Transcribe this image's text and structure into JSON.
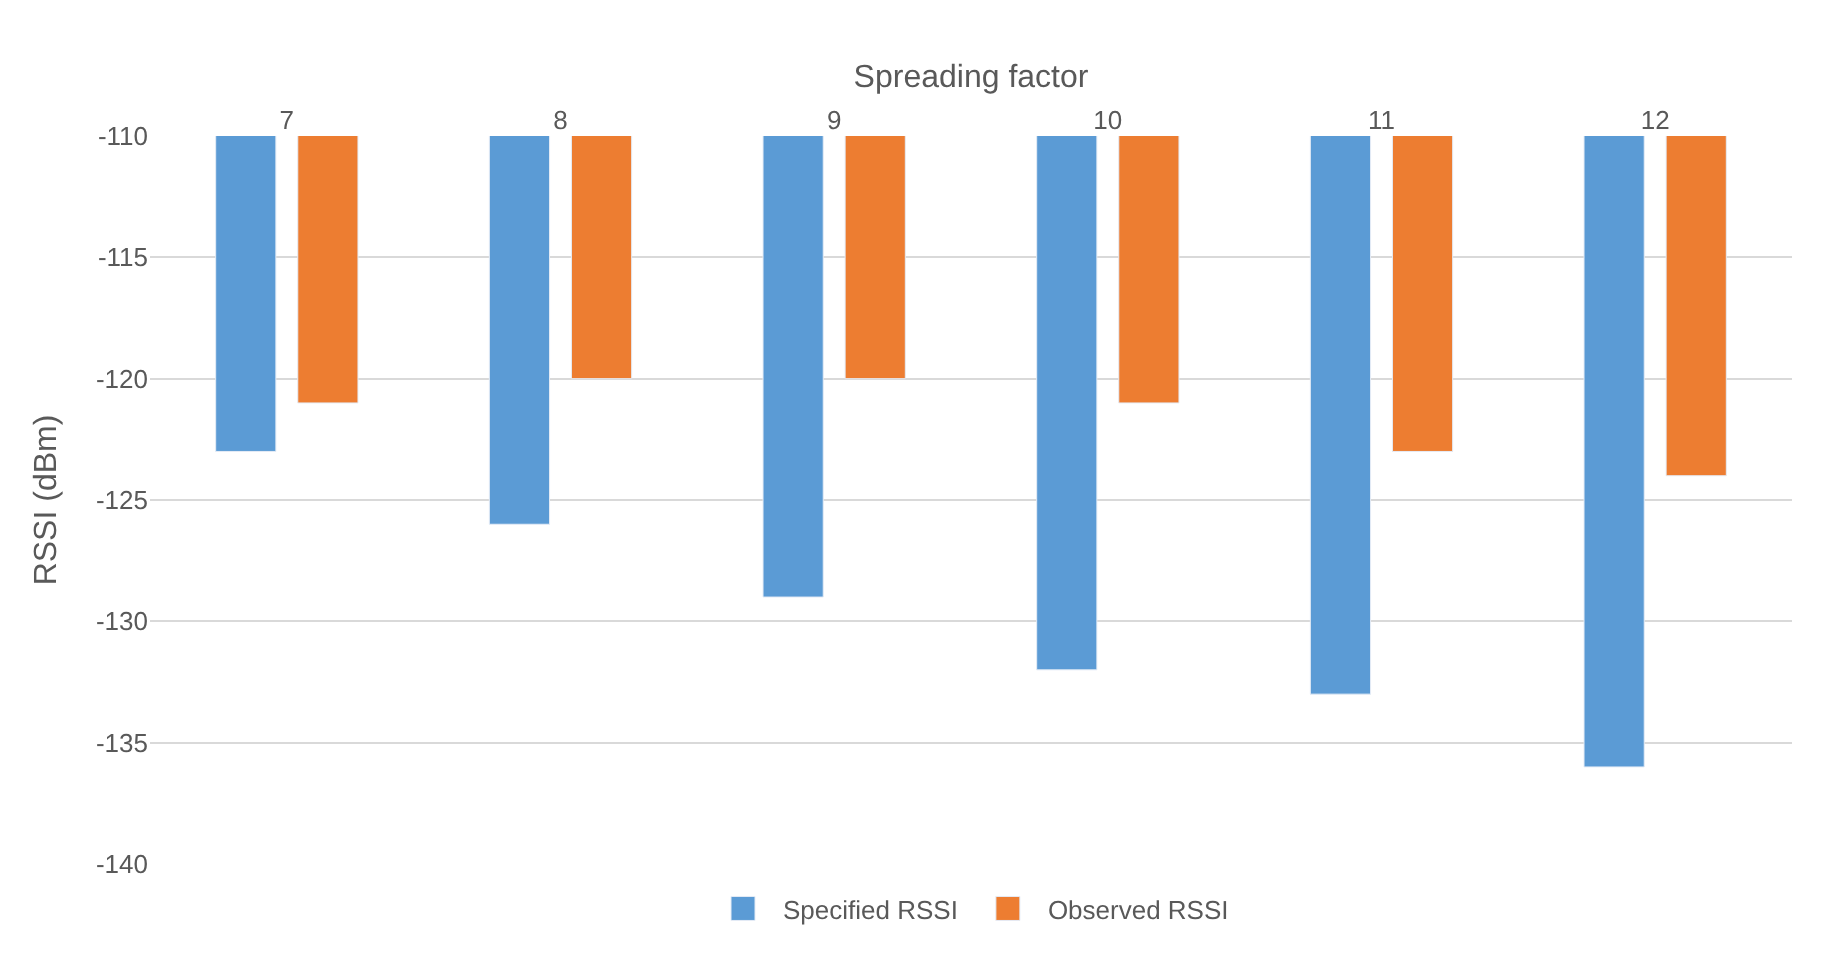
{
  "chart_data": {
    "type": "bar",
    "xlabel": "Spreading factor",
    "ylabel": "RSSI (dBm)",
    "categories": [
      "7",
      "8",
      "9",
      "10",
      "11",
      "12"
    ],
    "series": [
      {
        "name": "Specified RSSI",
        "color": "#5b9bd5",
        "values": [
          -123,
          -126,
          -129,
          -132,
          -133,
          -136
        ]
      },
      {
        "name": "Observed RSSI",
        "color": "#ed7d31",
        "values": [
          -121,
          -120,
          -120,
          -121,
          -123,
          -124
        ]
      }
    ],
    "ylim": [
      -140,
      -110
    ],
    "yticks": [
      -110,
      -115,
      -120,
      -125,
      -130,
      -135,
      -140
    ],
    "grid": "y",
    "legend": "bottom"
  }
}
